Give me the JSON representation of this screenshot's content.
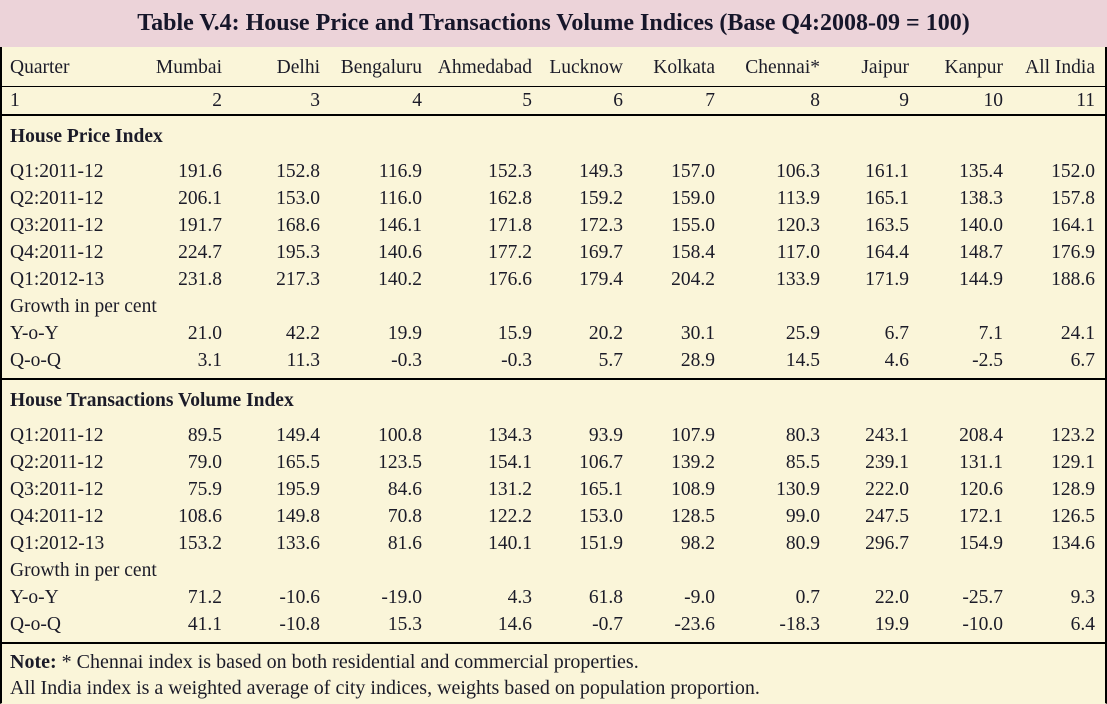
{
  "title": "Table V.4: House Price and Transactions Volume Indices (Base Q4:2008-09 = 100)",
  "columns": [
    "Quarter",
    "Mumbai",
    "Delhi",
    "Bengaluru",
    "Ahmedabad",
    "Lucknow",
    "Kolkata",
    "Chennai*",
    "Jaipur",
    "Kanpur",
    "All India"
  ],
  "column_numbers": [
    "1",
    "2",
    "3",
    "4",
    "5",
    "6",
    "7",
    "8",
    "9",
    "10",
    "11"
  ],
  "sections": [
    {
      "heading": "House Price Index",
      "rows": [
        {
          "label": "Q1:2011-12",
          "values": [
            "191.6",
            "152.8",
            "116.9",
            "152.3",
            "149.3",
            "157.0",
            "106.3",
            "161.1",
            "135.4",
            "152.0"
          ]
        },
        {
          "label": "Q2:2011-12",
          "values": [
            "206.1",
            "153.0",
            "116.0",
            "162.8",
            "159.2",
            "159.0",
            "113.9",
            "165.1",
            "138.3",
            "157.8"
          ]
        },
        {
          "label": "Q3:2011-12",
          "values": [
            "191.7",
            "168.6",
            "146.1",
            "171.8",
            "172.3",
            "155.0",
            "120.3",
            "163.5",
            "140.0",
            "164.1"
          ]
        },
        {
          "label": "Q4:2011-12",
          "values": [
            "224.7",
            "195.3",
            "140.6",
            "177.2",
            "169.7",
            "158.4",
            "117.0",
            "164.4",
            "148.7",
            "176.9"
          ]
        },
        {
          "label": "Q1:2012-13",
          "values": [
            "231.8",
            "217.3",
            "140.2",
            "176.6",
            "179.4",
            "204.2",
            "133.9",
            "171.9",
            "144.9",
            "188.6"
          ]
        }
      ],
      "growth_heading": "Growth in per cent",
      "growth_rows": [
        {
          "label": "Y-o-Y",
          "values": [
            "21.0",
            "42.2",
            "19.9",
            "15.9",
            "20.2",
            "30.1",
            "25.9",
            "6.7",
            "7.1",
            "24.1"
          ]
        },
        {
          "label": "Q-o-Q",
          "values": [
            "3.1",
            "11.3",
            "-0.3",
            "-0.3",
            "5.7",
            "28.9",
            "14.5",
            "4.6",
            "-2.5",
            "6.7"
          ]
        }
      ]
    },
    {
      "heading": "House Transactions Volume Index",
      "rows": [
        {
          "label": "Q1:2011-12",
          "values": [
            "89.5",
            "149.4",
            "100.8",
            "134.3",
            "93.9",
            "107.9",
            "80.3",
            "243.1",
            "208.4",
            "123.2"
          ]
        },
        {
          "label": "Q2:2011-12",
          "values": [
            "79.0",
            "165.5",
            "123.5",
            "154.1",
            "106.7",
            "139.2",
            "85.5",
            "239.1",
            "131.1",
            "129.1"
          ]
        },
        {
          "label": "Q3:2011-12",
          "values": [
            "75.9",
            "195.9",
            "84.6",
            "131.2",
            "165.1",
            "108.9",
            "130.9",
            "222.0",
            "120.6",
            "128.9"
          ]
        },
        {
          "label": "Q4:2011-12",
          "values": [
            "108.6",
            "149.8",
            "70.8",
            "122.2",
            "153.0",
            "128.5",
            "99.0",
            "247.5",
            "172.1",
            "126.5"
          ]
        },
        {
          "label": "Q1:2012-13",
          "values": [
            "153.2",
            "133.6",
            "81.6",
            "140.1",
            "151.9",
            "98.2",
            "80.9",
            "296.7",
            "154.9",
            "134.6"
          ]
        }
      ],
      "growth_heading": "Growth in per cent",
      "growth_rows": [
        {
          "label": "Y-o-Y",
          "values": [
            "71.2",
            "-10.6",
            "-19.0",
            "4.3",
            "61.8",
            "-9.0",
            "0.7",
            "22.0",
            "-25.7",
            "9.3"
          ]
        },
        {
          "label": "Q-o-Q",
          "values": [
            "41.1",
            "-10.8",
            "15.3",
            "14.6",
            "-0.7",
            "-23.6",
            "-18.3",
            "19.9",
            "-10.0",
            "6.4"
          ]
        }
      ]
    }
  ],
  "notes": {
    "note_label": "Note:",
    "line1": " * Chennai index is based on both residential and commercial properties.",
    "line2": "All India index is a weighted average of city indices, weights based on population proportion."
  },
  "colors": {
    "title_bg": "#ecd3d9",
    "body_bg": "#faf5d9",
    "text": "#1b1b28",
    "rule": "#000000"
  }
}
